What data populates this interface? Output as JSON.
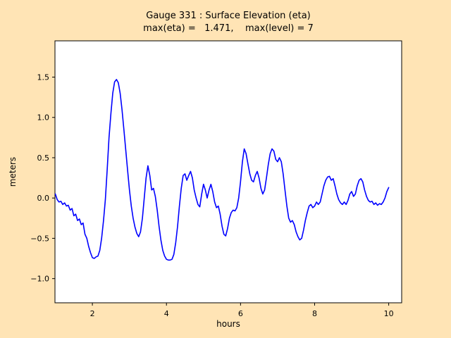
{
  "figure": {
    "title_line1": "Gauge 331 : Surface Elevation (eta)",
    "title_line2": "max(eta) =   1.471,    max(level) = 7",
    "background_color": "#ffe4b5",
    "plot_background": "#ffffff",
    "axis_color": "#000000"
  },
  "chart_data": {
    "type": "line",
    "title": "Gauge 331 : Surface Elevation (eta)",
    "subtitle": "max(eta) =   1.471,    max(level) = 7",
    "xlabel": "hours",
    "ylabel": "meters",
    "xlim": [
      0.99,
      10.35
    ],
    "ylim": [
      -1.3,
      1.95
    ],
    "xticks": [
      2,
      4,
      6,
      8,
      10
    ],
    "xtick_labels": [
      "2",
      "4",
      "6",
      "8",
      "10"
    ],
    "yticks": [
      -1.0,
      -0.5,
      0.0,
      0.5,
      1.0,
      1.5
    ],
    "ytick_labels": [
      "−1.0",
      "−0.5",
      "0.0",
      "0.5",
      "1.0",
      "1.5"
    ],
    "grid": false,
    "legend": "none",
    "max_eta": 1.471,
    "max_level": 7,
    "series": [
      {
        "name": "eta",
        "color": "#0000ff",
        "x0": 1.0,
        "dx": 0.05,
        "y": [
          0.05,
          -0.02,
          -0.05,
          -0.04,
          -0.08,
          -0.06,
          -0.1,
          -0.09,
          -0.15,
          -0.13,
          -0.22,
          -0.2,
          -0.28,
          -0.26,
          -0.33,
          -0.31,
          -0.45,
          -0.5,
          -0.6,
          -0.68,
          -0.74,
          -0.75,
          -0.73,
          -0.72,
          -0.65,
          -0.5,
          -0.28,
          -0.02,
          0.35,
          0.75,
          1.05,
          1.3,
          1.44,
          1.47,
          1.43,
          1.3,
          1.1,
          0.85,
          0.6,
          0.35,
          0.1,
          -0.1,
          -0.25,
          -0.36,
          -0.44,
          -0.48,
          -0.42,
          -0.25,
          0.0,
          0.25,
          0.4,
          0.28,
          0.1,
          0.12,
          0.02,
          -0.15,
          -0.35,
          -0.52,
          -0.65,
          -0.72,
          -0.76,
          -0.77,
          -0.77,
          -0.76,
          -0.7,
          -0.55,
          -0.35,
          -0.1,
          0.12,
          0.28,
          0.3,
          0.22,
          0.28,
          0.33,
          0.25,
          0.1,
          0.0,
          -0.08,
          -0.11,
          0.05,
          0.17,
          0.1,
          0.0,
          0.1,
          0.17,
          0.08,
          -0.05,
          -0.12,
          -0.1,
          -0.2,
          -0.35,
          -0.45,
          -0.47,
          -0.38,
          -0.25,
          -0.18,
          -0.15,
          -0.16,
          -0.12,
          0.0,
          0.2,
          0.45,
          0.61,
          0.55,
          0.42,
          0.3,
          0.22,
          0.2,
          0.28,
          0.33,
          0.25,
          0.12,
          0.05,
          0.1,
          0.25,
          0.42,
          0.55,
          0.61,
          0.58,
          0.48,
          0.45,
          0.5,
          0.45,
          0.3,
          0.1,
          -0.1,
          -0.25,
          -0.3,
          -0.28,
          -0.33,
          -0.42,
          -0.48,
          -0.52,
          -0.5,
          -0.4,
          -0.28,
          -0.18,
          -0.1,
          -0.08,
          -0.12,
          -0.1,
          -0.05,
          -0.08,
          -0.05,
          0.05,
          0.15,
          0.22,
          0.26,
          0.27,
          0.22,
          0.24,
          0.15,
          0.05,
          -0.02,
          -0.06,
          -0.08,
          -0.05,
          -0.08,
          -0.03,
          0.05,
          0.08,
          0.02,
          0.05,
          0.15,
          0.22,
          0.24,
          0.2,
          0.1,
          0.02,
          -0.03,
          -0.05,
          -0.04,
          -0.08,
          -0.06,
          -0.09,
          -0.07,
          -0.08,
          -0.05,
          0.0,
          0.08,
          0.13
        ]
      }
    ]
  }
}
